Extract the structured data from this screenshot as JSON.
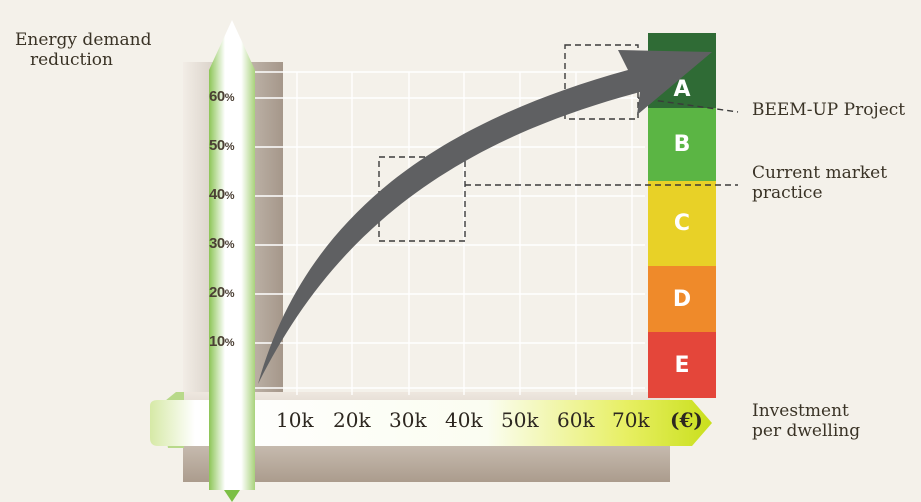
{
  "y_axis": {
    "label_line1": "Energy demand",
    "label_line2": "reduction",
    "ticks": [
      {
        "value": "60",
        "unit": "%"
      },
      {
        "value": "50",
        "unit": "%"
      },
      {
        "value": "40",
        "unit": "%"
      },
      {
        "value": "30",
        "unit": "%"
      },
      {
        "value": "20",
        "unit": "%"
      },
      {
        "value": "10",
        "unit": "%"
      }
    ]
  },
  "x_axis": {
    "label_line1": "Investment",
    "label_line2": "per dwelling",
    "ticks": [
      "10k",
      "20k",
      "30k",
      "40k",
      "50k",
      "60k",
      "70k",
      "(€)"
    ]
  },
  "energy_classes": [
    {
      "letter": "A",
      "color": "#2f6b35"
    },
    {
      "letter": "B",
      "color": "#5bb544"
    },
    {
      "letter": "C",
      "color": "#e8d127"
    },
    {
      "letter": "D",
      "color": "#ef8a2a"
    },
    {
      "letter": "E",
      "color": "#e4463a"
    }
  ],
  "callouts": {
    "beem_up": "BEEM-UP Project",
    "current_line1": "Current market",
    "current_line2": "practice"
  },
  "colors": {
    "arrow": "#5f6062",
    "axis_green": "#7cbf45",
    "brown_shadow": "#a99c8b"
  }
}
